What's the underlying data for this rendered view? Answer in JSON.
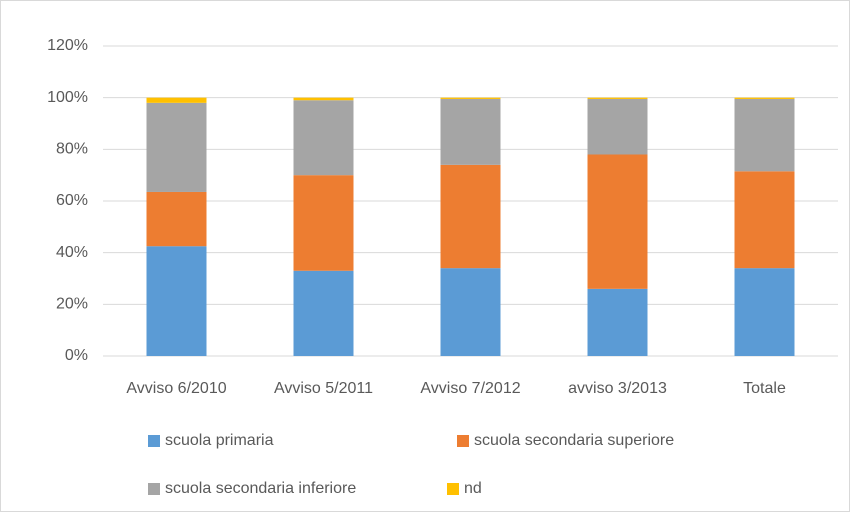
{
  "chart_data": {
    "type": "stacked_bar",
    "categories": [
      "Avviso 6/2010",
      "Avviso 5/2011",
      "Avviso 7/2012",
      "avviso 3/2013",
      "Totale"
    ],
    "series": [
      {
        "name": "scuola primaria",
        "color": "#5b9bd5",
        "values": [
          42.5,
          33,
          34,
          26,
          34
        ]
      },
      {
        "name": "scuola secondaria superiore",
        "color": "#ed7d31",
        "values": [
          21,
          37,
          40,
          52,
          37.5
        ]
      },
      {
        "name": "scuola secondaria inferiore",
        "color": "#a5a5a5",
        "values": [
          34.5,
          29,
          25.5,
          21.5,
          28
        ]
      },
      {
        "name": "nd",
        "color": "#ffc000",
        "values": [
          2,
          1,
          0.5,
          0.5,
          0.5
        ]
      }
    ],
    "ylim": [
      0,
      120
    ],
    "yticks": [
      {
        "value": 0,
        "label": "0%"
      },
      {
        "value": 20,
        "label": "20%"
      },
      {
        "value": 40,
        "label": "40%"
      },
      {
        "value": 60,
        "label": "60%"
      },
      {
        "value": 80,
        "label": "80%"
      },
      {
        "value": 100,
        "label": "100%"
      },
      {
        "value": 120,
        "label": "120%"
      }
    ],
    "grid": true,
    "legend": "bottom"
  }
}
